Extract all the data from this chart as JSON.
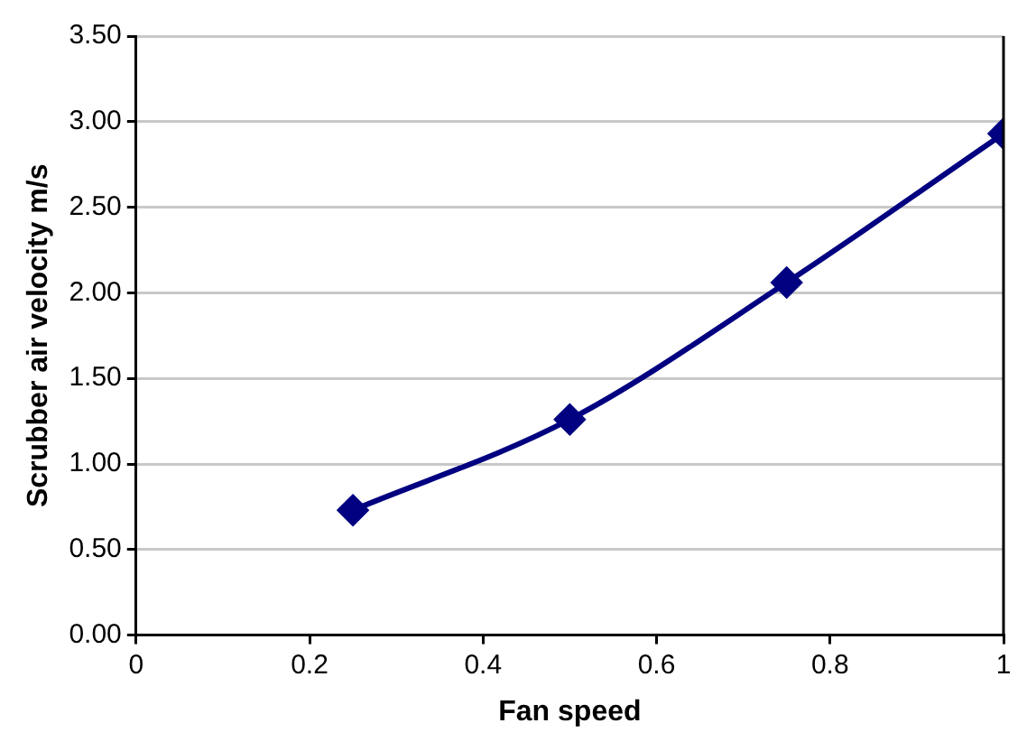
{
  "chart_data": {
    "type": "line",
    "xlabel": "Fan speed",
    "ylabel": "Scrubber air velocity m/s",
    "x": [
      0.25,
      0.5,
      0.75,
      1
    ],
    "series": [
      {
        "color": "#000080",
        "values": [
          0.73,
          1.26,
          2.06,
          2.93
        ]
      }
    ],
    "xlim": [
      0,
      1
    ],
    "xticks": [
      0,
      0.2,
      0.4,
      0.6,
      0.8,
      1
    ],
    "ylim": [
      0,
      3.5
    ],
    "yticks": [
      {
        "value": 0,
        "label": "0.00"
      },
      {
        "value": 0.5,
        "label": "0.50"
      },
      {
        "value": 1,
        "label": "1.00"
      },
      {
        "value": 1.5,
        "label": "1.50"
      },
      {
        "value": 2,
        "label": "2.00"
      },
      {
        "value": 2.5,
        "label": "2.50"
      },
      {
        "value": 3,
        "label": "3.00"
      },
      {
        "value": 3.5,
        "label": "3.50"
      }
    ],
    "grid": "y",
    "legend": false,
    "marker": "diamond",
    "line_style": "solid"
  }
}
